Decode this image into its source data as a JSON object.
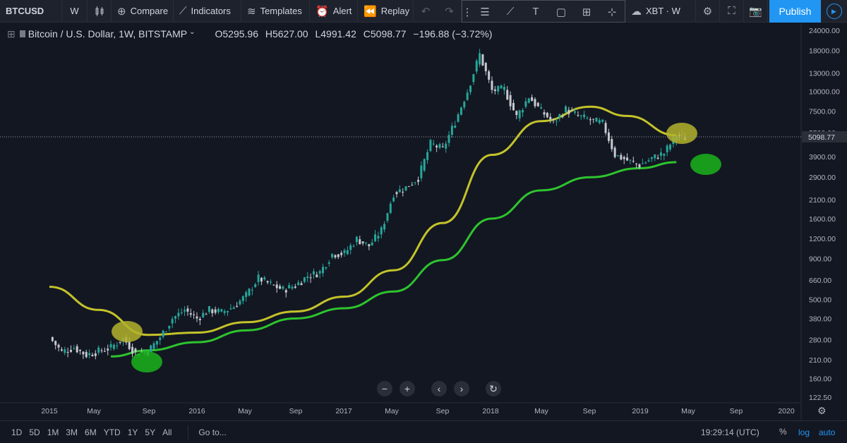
{
  "toolbar": {
    "symbol": "BTCUSD",
    "interval": "W",
    "compare": "Compare",
    "indicators": "Indicators",
    "templates": "Templates",
    "alert": "Alert",
    "replay": "Replay",
    "watchlist": "XBT · W",
    "publish": "Publish"
  },
  "legend": {
    "title": "Bitcoin / U.S. Dollar, 1W, BITSTAMP",
    "open": "O5295.96",
    "high": "H5627.00",
    "low": "L4991.42",
    "close": "C5098.77",
    "change": "−196.88 (−3.72%)"
  },
  "bottom": {
    "ranges": [
      "1D",
      "5D",
      "1M",
      "3M",
      "6M",
      "YTD",
      "1Y",
      "5Y",
      "All"
    ],
    "goto": "Go to...",
    "clock": "19:29:14 (UTC)",
    "percent": "%",
    "log": "log",
    "auto": "auto"
  },
  "colors": {
    "background": "#131722",
    "up": "#26a69a",
    "down": "#c7c9cf",
    "ma_yellow": "#c3c32a",
    "ma_green": "#2ec42e",
    "accent": "#2196f3"
  },
  "chart_data": {
    "type": "candlestick",
    "scale": "log",
    "price_axis": [
      "24000.00",
      "18000.00",
      "13000.00",
      "10000.00",
      "7500.00",
      "5500.00",
      "3900.00",
      "2900.00",
      "2100.00",
      "1600.00",
      "1200.00",
      "900.00",
      "660.00",
      "500.00",
      "380.00",
      "280.00",
      "210.00",
      "160.00",
      "122.50"
    ],
    "current_price": "5098.77",
    "time_axis": [
      "2015",
      "May",
      "Sep",
      "2016",
      "May",
      "Sep",
      "2017",
      "May",
      "Sep",
      "2018",
      "May",
      "Sep",
      "2019",
      "May",
      "Sep",
      "2020"
    ],
    "series": [
      {
        "name": "close",
        "points": [
          [
            "2015-01",
            290
          ],
          [
            "2015-02",
            235
          ],
          [
            "2015-03",
            250
          ],
          [
            "2015-04",
            225
          ],
          [
            "2015-05",
            237
          ],
          [
            "2015-06",
            250
          ],
          [
            "2015-07",
            285
          ],
          [
            "2015-08",
            230
          ],
          [
            "2015-09",
            237
          ],
          [
            "2015-10",
            290
          ],
          [
            "2015-11",
            380
          ],
          [
            "2015-12",
            430
          ],
          [
            "2016-01",
            380
          ],
          [
            "2016-02",
            430
          ],
          [
            "2016-03",
            415
          ],
          [
            "2016-04",
            450
          ],
          [
            "2016-05",
            530
          ],
          [
            "2016-06",
            680
          ],
          [
            "2016-07",
            620
          ],
          [
            "2016-08",
            575
          ],
          [
            "2016-09",
            610
          ],
          [
            "2016-10",
            700
          ],
          [
            "2016-11",
            740
          ],
          [
            "2016-12",
            960
          ],
          [
            "2017-01",
            970
          ],
          [
            "2017-02",
            1190
          ],
          [
            "2017-03",
            1080
          ],
          [
            "2017-04",
            1350
          ],
          [
            "2017-05",
            2300
          ],
          [
            "2017-06",
            2500
          ],
          [
            "2017-07",
            2880
          ],
          [
            "2017-08",
            4700
          ],
          [
            "2017-09",
            4340
          ],
          [
            "2017-10",
            6450
          ],
          [
            "2017-11",
            10000
          ],
          [
            "2017-12",
            17000
          ],
          [
            "2018-01",
            10100
          ],
          [
            "2018-02",
            10300
          ],
          [
            "2018-03",
            6900
          ],
          [
            "2018-04",
            9250
          ],
          [
            "2018-05",
            7500
          ],
          [
            "2018-06",
            6400
          ],
          [
            "2018-07",
            7700
          ],
          [
            "2018-08",
            7000
          ],
          [
            "2018-09",
            6600
          ],
          [
            "2018-10",
            6300
          ],
          [
            "2018-11",
            4000
          ],
          [
            "2018-12",
            3700
          ],
          [
            "2019-01",
            3450
          ],
          [
            "2019-02",
            3800
          ],
          [
            "2019-03",
            4100
          ],
          [
            "2019-04",
            5300
          ],
          [
            "2019-04-22",
            5098.77
          ]
        ]
      },
      {
        "name": "ma-yellow",
        "points": [
          [
            "2015-01",
            600
          ],
          [
            "2015-05",
            430
          ],
          [
            "2015-09",
            300
          ],
          [
            "2016-01",
            310
          ],
          [
            "2016-05",
            360
          ],
          [
            "2016-09",
            420
          ],
          [
            "2017-01",
            520
          ],
          [
            "2017-05",
            760
          ],
          [
            "2017-09",
            1500
          ],
          [
            "2018-01",
            4000
          ],
          [
            "2018-05",
            6500
          ],
          [
            "2018-09",
            8000
          ],
          [
            "2018-12",
            7000
          ],
          [
            "2019-04",
            5300
          ]
        ]
      },
      {
        "name": "ma-green",
        "points": [
          [
            "2015-06",
            220
          ],
          [
            "2015-09",
            240
          ],
          [
            "2016-01",
            270
          ],
          [
            "2016-05",
            320
          ],
          [
            "2016-09",
            380
          ],
          [
            "2017-01",
            440
          ],
          [
            "2017-05",
            560
          ],
          [
            "2017-09",
            880
          ],
          [
            "2018-01",
            1600
          ],
          [
            "2018-05",
            2400
          ],
          [
            "2018-09",
            2900
          ],
          [
            "2019-01",
            3300
          ],
          [
            "2019-04",
            3600
          ]
        ]
      }
    ],
    "annotations": [
      {
        "shape": "ellipse",
        "color": "yellow",
        "at": "2015-07 ~ 300"
      },
      {
        "shape": "ellipse",
        "color": "green",
        "at": "2015-09 ~ 210"
      },
      {
        "shape": "ellipse",
        "color": "yellow",
        "at": "2019-04 ~ 5300"
      },
      {
        "shape": "ellipse",
        "color": "green",
        "at": "2019-06 ~ 3500"
      }
    ]
  }
}
